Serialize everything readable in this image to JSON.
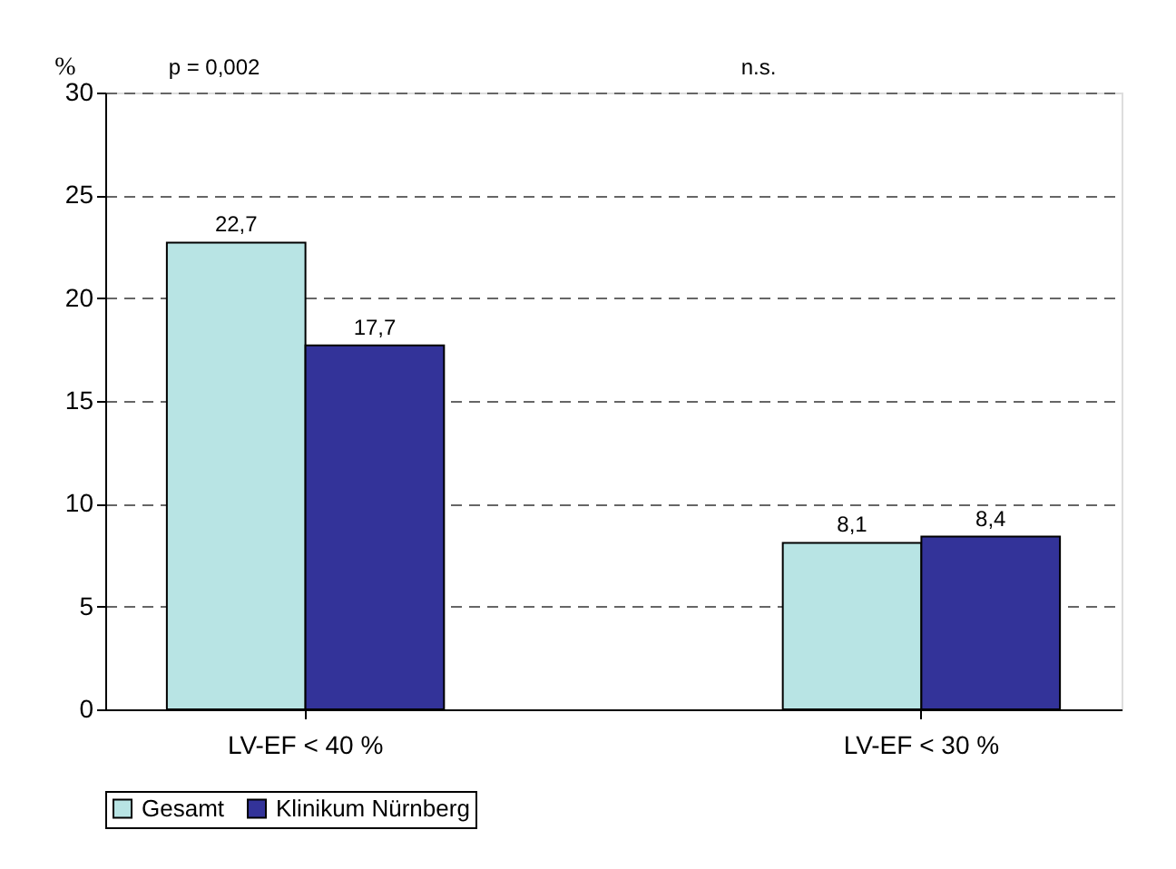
{
  "chart_data": {
    "type": "bar",
    "ylabel": "%",
    "categories": [
      "LV-EF < 40 %",
      "LV-EF < 30 %"
    ],
    "series": [
      {
        "name": "Gesamt",
        "color": "#b8e4e4",
        "values": [
          22.7,
          8.1
        ],
        "value_labels": [
          "22,7",
          "8,1"
        ]
      },
      {
        "name": "Klinikum Nürnberg",
        "color": "#333399",
        "values": [
          17.7,
          8.4
        ],
        "value_labels": [
          "17,7",
          "8,4"
        ]
      }
    ],
    "annotations": [
      "p = 0,002",
      "n.s."
    ],
    "ylim": [
      0,
      30
    ],
    "yticks": [
      0,
      5,
      10,
      15,
      20,
      25,
      30
    ],
    "grid": "y",
    "legend": "bottom"
  }
}
